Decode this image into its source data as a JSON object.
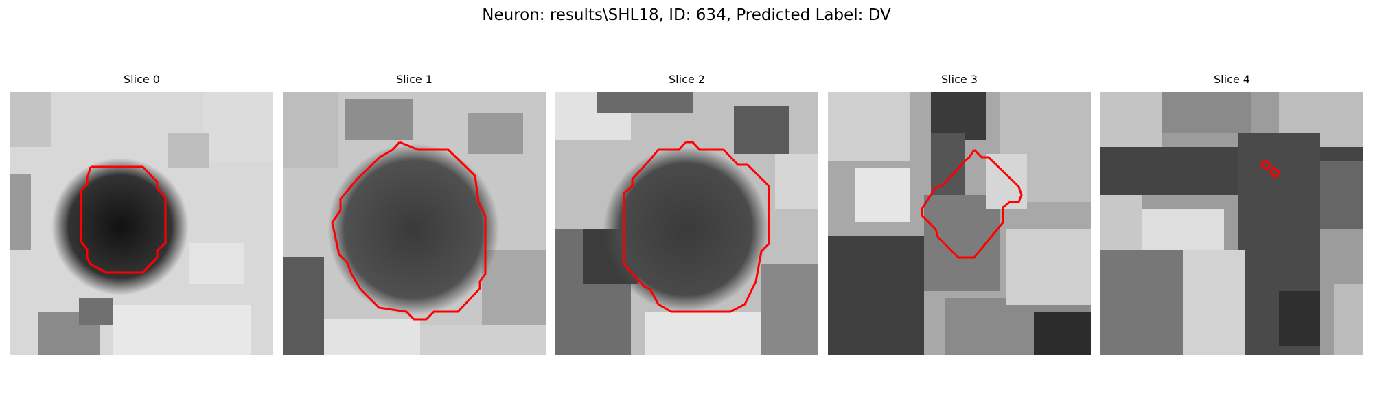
{
  "figure": {
    "title": "Neuron: results\\SHL18, ID: 634, Predicted Label: DV"
  },
  "colors": {
    "contour": "#ff0000",
    "background": "#ffffff"
  },
  "slices": [
    {
      "title": "Slice 0",
      "image": "grayscale-microscopy-patch"
    },
    {
      "title": "Slice 1",
      "image": "grayscale-microscopy-patch"
    },
    {
      "title": "Slice 2",
      "image": "grayscale-microscopy-patch"
    },
    {
      "title": "Slice 3",
      "image": "grayscale-microscopy-patch"
    },
    {
      "title": "Slice 4",
      "image": "grayscale-microscopy-patch"
    }
  ]
}
